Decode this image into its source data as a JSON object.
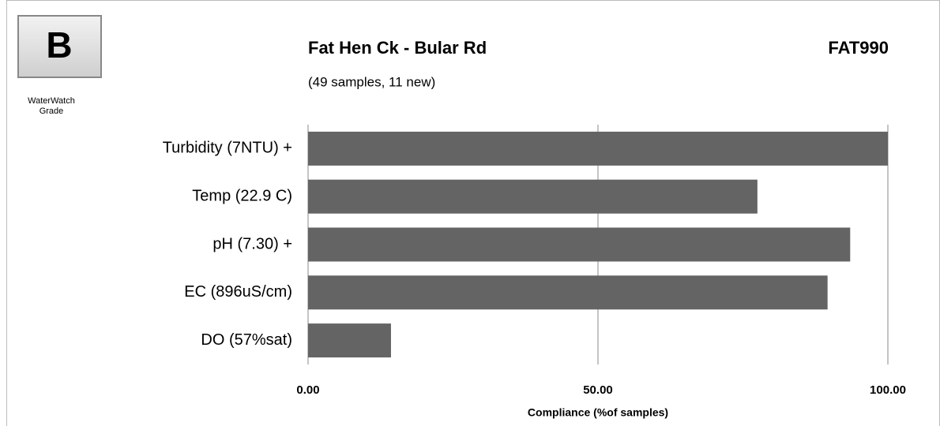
{
  "chart_data": {
    "type": "bar",
    "orientation": "horizontal",
    "grade": "B",
    "grade_caption": [
      "WaterWatch",
      "Grade"
    ],
    "title": "Fat Hen Ck -  Bular Rd",
    "code": "FAT990",
    "subtitle": "(49 samples, 11 new)",
    "categories": [
      "Turbidity (7NTU) +",
      "Temp (22.9 C)",
      "pH (7.30) +",
      "EC (896uS/cm)",
      "DO (57%sat)"
    ],
    "values": [
      100,
      77.5,
      93.5,
      89.6,
      14.3
    ],
    "color": "#646464",
    "xlim": [
      0,
      100
    ],
    "xticks": [
      {
        "value": 0,
        "label": "0.00"
      },
      {
        "value": 50,
        "label": "50.00"
      },
      {
        "value": 100,
        "label": "100.00"
      }
    ],
    "xlabel": "Compliance (%of samples)",
    "grid": true
  }
}
